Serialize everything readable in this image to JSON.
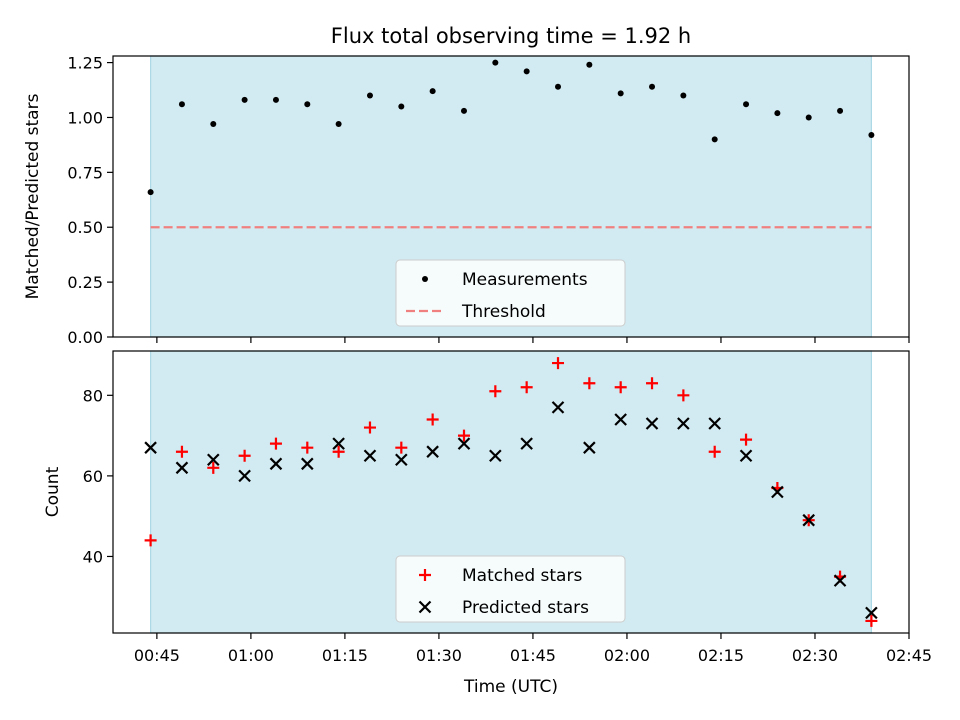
{
  "chart_data": {
    "type": "scatter",
    "title": "Flux total observing time = 1.92 h",
    "xlabel": "Time (UTC)",
    "x_ticks": [
      "00:45",
      "01:00",
      "01:15",
      "01:30",
      "01:45",
      "02:00",
      "02:15",
      "02:30",
      "02:45"
    ],
    "times": [
      "00:44",
      "00:49",
      "00:54",
      "00:59",
      "01:04",
      "01:09",
      "01:14",
      "01:19",
      "01:24",
      "01:29",
      "01:34",
      "01:39",
      "01:44",
      "01:49",
      "01:54",
      "01:59",
      "02:04",
      "02:09",
      "02:14",
      "02:19",
      "02:24",
      "02:29",
      "02:34",
      "02:39"
    ],
    "xlim": [
      "00:38",
      "02:45"
    ],
    "observing_window": [
      "00:44",
      "02:39"
    ],
    "shade_color": "#add8e6",
    "panels": [
      {
        "ylabel": "Matched/Predicted stars",
        "ylim": [
          0,
          1.28
        ],
        "y_ticks": [
          0.0,
          0.25,
          0.5,
          0.75,
          1.0,
          1.25
        ],
        "y_tick_labels": [
          "0.00",
          "0.25",
          "0.50",
          "0.75",
          "1.00",
          "1.25"
        ],
        "legend_position": "lower center",
        "series": [
          {
            "name": "Measurements",
            "marker": "dot",
            "color": "#000000",
            "values": [
              0.66,
              1.06,
              0.97,
              1.08,
              1.08,
              1.06,
              0.97,
              1.1,
              1.05,
              1.12,
              1.03,
              1.25,
              1.21,
              1.14,
              1.24,
              1.11,
              1.14,
              1.1,
              0.9,
              1.06,
              1.02,
              1.0,
              1.03,
              0.92
            ]
          }
        ],
        "threshold": {
          "name": "Threshold",
          "value": 0.5,
          "color": "#f08080"
        }
      },
      {
        "ylabel": "Count",
        "ylim": [
          21,
          91
        ],
        "y_ticks": [
          40,
          60,
          80
        ],
        "y_tick_labels": [
          "40",
          "60",
          "80"
        ],
        "legend_position": "lower center",
        "series": [
          {
            "name": "Matched stars",
            "marker": "plus",
            "color": "#ff0000",
            "values": [
              44,
              66,
              62,
              65,
              68,
              67,
              66,
              72,
              67,
              74,
              70,
              81,
              82,
              88,
              83,
              82,
              83,
              80,
              66,
              69,
              57,
              49,
              35,
              24
            ]
          },
          {
            "name": "Predicted stars",
            "marker": "x",
            "color": "#000000",
            "values": [
              67,
              62,
              64,
              60,
              63,
              63,
              68,
              65,
              64,
              66,
              68,
              65,
              68,
              77,
              67,
              74,
              73,
              73,
              73,
              65,
              56,
              49,
              34,
              26
            ]
          }
        ]
      }
    ]
  }
}
